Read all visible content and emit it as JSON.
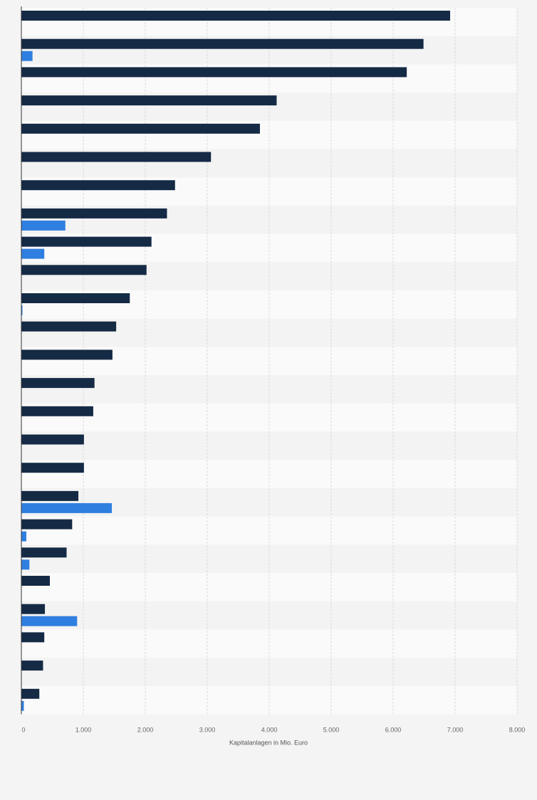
{
  "colors": {
    "series_primary": "#152a45",
    "series_secondary": "#2f7fe0",
    "band_light": "#fafafa",
    "band_dark": "#f3f3f3",
    "grid": "#d9d9d9",
    "axis_line": "#333333",
    "tick_text": "#666666",
    "label_text": "#555555"
  },
  "chart_data": {
    "type": "bar",
    "orientation": "horizontal",
    "xlabel": "Kapitalanlagen in Mio. Euro",
    "xlim": [
      0,
      8000
    ],
    "tick_values": [
      0,
      1000,
      2000,
      3000,
      4000,
      5000,
      6000,
      7000,
      8000
    ],
    "tick_labels": [
      "0",
      "1.000",
      "2.000",
      "3.000",
      "4.000",
      "5.000",
      "6.000",
      "7.000",
      "8.000"
    ],
    "grid": true,
    "legend": "none",
    "categories": [
      "",
      "",
      "",
      "",
      "",
      "",
      "",
      "",
      "",
      "",
      "",
      "",
      "",
      "",
      "",
      "",
      "",
      "",
      "",
      "",
      "",
      "",
      "",
      "",
      ""
    ],
    "series": [
      {
        "values": [
          6920,
          6490,
          6220,
          4120,
          3850,
          3060,
          2480,
          2350,
          2100,
          2020,
          1750,
          1530,
          1470,
          1180,
          1160,
          1010,
          1010,
          920,
          820,
          730,
          460,
          380,
          370,
          350,
          290
        ]
      },
      {
        "values": [
          null,
          180,
          null,
          null,
          null,
          null,
          null,
          710,
          370,
          null,
          15,
          null,
          null,
          null,
          null,
          null,
          null,
          1460,
          80,
          130,
          null,
          900,
          null,
          null,
          40
        ]
      }
    ]
  }
}
